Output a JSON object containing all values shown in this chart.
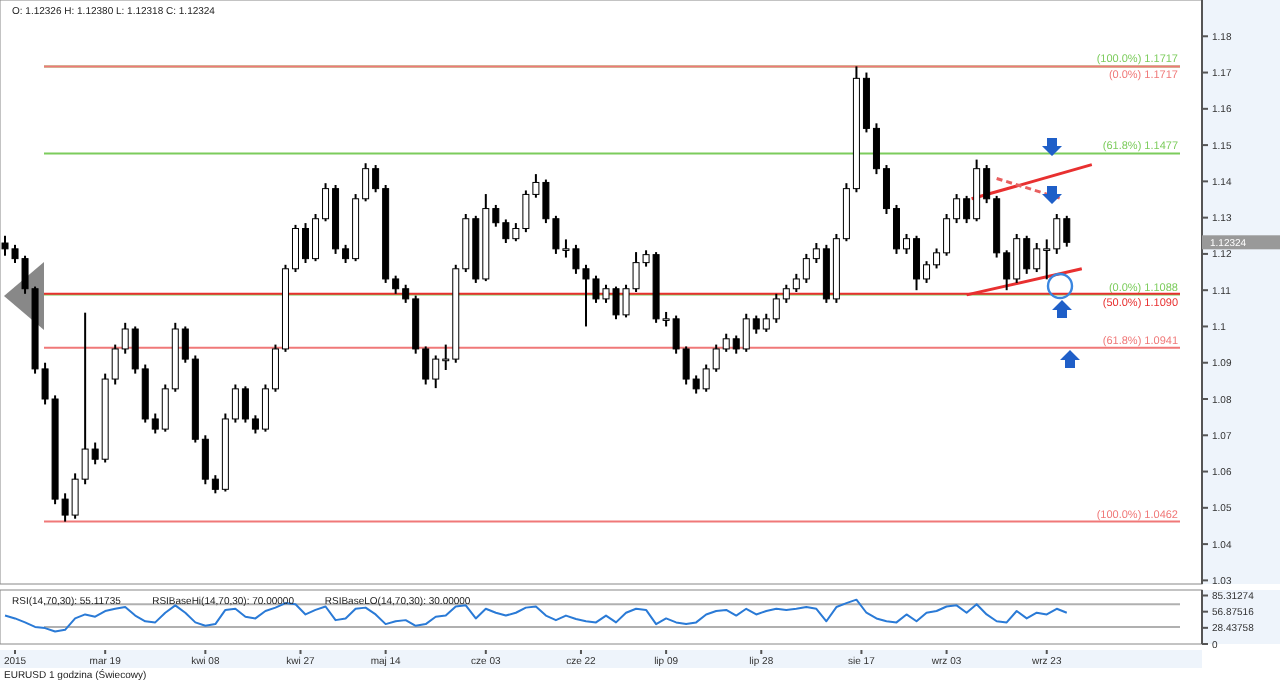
{
  "chart_data": [
    {
      "type": "candlestick",
      "title": "O: 1.12326 H: 1.12380 L: 1.12318 C: 1.12324",
      "tick_labels": "y",
      "x": [
        "2015-02-27",
        "2015-03-01",
        "2015-03-03",
        "2015-03-05",
        "2015-03-07",
        "2015-03-09",
        "2015-03-11",
        "2015-03-13",
        "2015-03-15",
        "2015-03-17",
        "2015-03-19",
        "2015-03-21",
        "2015-03-23",
        "2015-03-25",
        "2015-03-27",
        "2015-03-29",
        "2015-03-31",
        "2015-04-02",
        "2015-04-04",
        "2015-04-06",
        "2015-04-08",
        "2015-04-10",
        "2015-04-12",
        "2015-04-14",
        "2015-04-16",
        "2015-04-18",
        "2015-04-20",
        "2015-04-22",
        "2015-04-24",
        "2015-04-26",
        "2015-04-28",
        "2015-04-30",
        "2015-05-02",
        "2015-05-04",
        "2015-05-06",
        "2015-05-08",
        "2015-05-10",
        "2015-05-12",
        "2015-05-14",
        "2015-05-16",
        "2015-05-18",
        "2015-05-20",
        "2015-05-22",
        "2015-05-24",
        "2015-05-26",
        "2015-05-28",
        "2015-05-30",
        "2015-06-01",
        "2015-06-03",
        "2015-06-05",
        "2015-06-07",
        "2015-06-09",
        "2015-06-11",
        "2015-06-13",
        "2015-06-15",
        "2015-06-17",
        "2015-06-19",
        "2015-06-21",
        "2015-06-23",
        "2015-06-25",
        "2015-06-27",
        "2015-06-29",
        "2015-07-01",
        "2015-07-03",
        "2015-07-05",
        "2015-07-07",
        "2015-07-09",
        "2015-07-11",
        "2015-07-13",
        "2015-07-15",
        "2015-07-17",
        "2015-07-19",
        "2015-07-21",
        "2015-07-23",
        "2015-07-25",
        "2015-07-27",
        "2015-07-29",
        "2015-07-31",
        "2015-08-02",
        "2015-08-04",
        "2015-08-06",
        "2015-08-08",
        "2015-08-10",
        "2015-08-12",
        "2015-08-14",
        "2015-08-16",
        "2015-08-18",
        "2015-08-20",
        "2015-08-22",
        "2015-08-24",
        "2015-08-26",
        "2015-08-28",
        "2015-08-30",
        "2015-09-01",
        "2015-09-03",
        "2015-09-05",
        "2015-09-07",
        "2015-09-09",
        "2015-09-11",
        "2015-09-13",
        "2015-09-15",
        "2015-09-17",
        "2015-09-19",
        "2015-09-21",
        "2015-09-23",
        "2015-09-25",
        "2015-09-27"
      ],
      "ohlc": [
        [
          1.123,
          1.125,
          1.1195,
          1.1214
        ],
        [
          1.1214,
          1.1225,
          1.1175,
          1.1187
        ],
        [
          1.1187,
          1.1195,
          1.109,
          1.1104
        ],
        [
          1.1104,
          1.111,
          1.087,
          1.0883
        ],
        [
          1.0883,
          1.09,
          1.0785,
          1.08
        ],
        [
          1.08,
          1.081,
          1.051,
          1.0524
        ],
        [
          1.0524,
          1.054,
          1.0462,
          1.048
        ],
        [
          1.048,
          1.0595,
          1.047,
          1.0579
        ],
        [
          1.0579,
          1.1038,
          1.0565,
          1.0662
        ],
        [
          1.0662,
          1.068,
          1.062,
          1.0634
        ],
        [
          1.0634,
          1.087,
          1.0625,
          1.0855
        ],
        [
          1.0855,
          1.095,
          1.084,
          1.0938
        ],
        [
          1.0938,
          1.101,
          1.0925,
          1.0993
        ],
        [
          1.0993,
          1.1,
          1.087,
          1.0883
        ],
        [
          1.0883,
          1.0895,
          1.0735,
          1.0745
        ],
        [
          1.0745,
          1.076,
          1.0705,
          1.0717
        ],
        [
          1.0717,
          1.084,
          1.071,
          1.0828
        ],
        [
          1.0828,
          1.101,
          1.082,
          1.0993
        ],
        [
          1.0993,
          1.1,
          1.09,
          1.091
        ],
        [
          1.091,
          1.092,
          1.068,
          1.0689
        ],
        [
          1.0689,
          1.07,
          1.0565,
          1.0579
        ],
        [
          1.0579,
          1.059,
          1.054,
          1.0551
        ],
        [
          1.0551,
          1.076,
          1.0545,
          1.0745
        ],
        [
          1.0745,
          1.084,
          1.0735,
          1.0828
        ],
        [
          1.0828,
          1.0835,
          1.0735,
          1.0745
        ],
        [
          1.0745,
          1.0755,
          1.0705,
          1.0717
        ],
        [
          1.0717,
          1.084,
          1.071,
          1.0828
        ],
        [
          1.0828,
          1.095,
          1.082,
          1.0938
        ],
        [
          1.0938,
          1.117,
          1.093,
          1.1159
        ],
        [
          1.1159,
          1.128,
          1.115,
          1.127
        ],
        [
          1.127,
          1.1285,
          1.1175,
          1.1187
        ],
        [
          1.1187,
          1.131,
          1.118,
          1.1297
        ],
        [
          1.1297,
          1.1395,
          1.129,
          1.138
        ],
        [
          1.138,
          1.139,
          1.12,
          1.1214
        ],
        [
          1.1214,
          1.1225,
          1.1175,
          1.1187
        ],
        [
          1.1187,
          1.1365,
          1.118,
          1.1352
        ],
        [
          1.1352,
          1.145,
          1.1345,
          1.1435
        ],
        [
          1.1435,
          1.1445,
          1.137,
          1.138
        ],
        [
          1.138,
          1.139,
          1.112,
          1.1131
        ],
        [
          1.1131,
          1.114,
          1.109,
          1.1104
        ],
        [
          1.1104,
          1.1115,
          1.1065,
          1.1076
        ],
        [
          1.1076,
          1.1085,
          1.0925,
          1.0938
        ],
        [
          1.0938,
          1.0945,
          1.084,
          1.0855
        ],
        [
          1.0855,
          1.092,
          1.083,
          1.091
        ],
        [
          1.091,
          1.095,
          1.088,
          1.091
        ],
        [
          1.091,
          1.117,
          1.09,
          1.1159
        ],
        [
          1.1159,
          1.131,
          1.115,
          1.1297
        ],
        [
          1.1297,
          1.1305,
          1.112,
          1.1131
        ],
        [
          1.1131,
          1.1365,
          1.1125,
          1.1325
        ],
        [
          1.1325,
          1.1335,
          1.1275,
          1.1286
        ],
        [
          1.1286,
          1.1295,
          1.123,
          1.1242
        ],
        [
          1.1242,
          1.1285,
          1.1235,
          1.127
        ],
        [
          1.127,
          1.1375,
          1.126,
          1.1364
        ],
        [
          1.1364,
          1.142,
          1.1355,
          1.1397
        ],
        [
          1.1397,
          1.1405,
          1.1285,
          1.1297
        ],
        [
          1.1297,
          1.1305,
          1.12,
          1.1214
        ],
        [
          1.1214,
          1.124,
          1.119,
          1.1214
        ],
        [
          1.1214,
          1.1225,
          1.1145,
          1.1159
        ],
        [
          1.1159,
          1.117,
          1.1,
          1.1131
        ],
        [
          1.1131,
          1.114,
          1.1065,
          1.1076
        ],
        [
          1.1076,
          1.1115,
          1.1065,
          1.1104
        ],
        [
          1.1104,
          1.111,
          1.102,
          1.1032
        ],
        [
          1.1032,
          1.1115,
          1.1025,
          1.1104
        ],
        [
          1.1104,
          1.1205,
          1.1095,
          1.1176
        ],
        [
          1.1176,
          1.121,
          1.1165,
          1.1198
        ],
        [
          1.1198,
          1.1205,
          1.101,
          1.1021
        ],
        [
          1.1021,
          1.104,
          1.1,
          1.1021
        ],
        [
          1.1021,
          1.103,
          1.0925,
          1.0938
        ],
        [
          1.0938,
          1.0945,
          1.084,
          1.0855
        ],
        [
          1.0855,
          1.0865,
          1.0815,
          1.0828
        ],
        [
          1.0828,
          1.0895,
          1.082,
          1.0883
        ],
        [
          1.0883,
          1.095,
          1.0875,
          1.0938
        ],
        [
          1.0938,
          1.098,
          1.093,
          1.0966
        ],
        [
          1.0966,
          1.0975,
          1.0925,
          1.0938
        ],
        [
          1.0938,
          1.1035,
          1.093,
          1.1021
        ],
        [
          1.1021,
          1.103,
          1.098,
          1.0993
        ],
        [
          1.0993,
          1.1035,
          1.0985,
          1.1021
        ],
        [
          1.1021,
          1.109,
          1.101,
          1.1076
        ],
        [
          1.1076,
          1.1115,
          1.1065,
          1.1104
        ],
        [
          1.1104,
          1.1145,
          1.1095,
          1.1131
        ],
        [
          1.1131,
          1.12,
          1.112,
          1.1187
        ],
        [
          1.1187,
          1.123,
          1.1175,
          1.1214
        ],
        [
          1.1214,
          1.1225,
          1.1065,
          1.1076
        ],
        [
          1.1076,
          1.1255,
          1.1065,
          1.1242
        ],
        [
          1.1242,
          1.1395,
          1.1235,
          1.138
        ],
        [
          1.138,
          1.1717,
          1.137,
          1.1684
        ],
        [
          1.1684,
          1.17,
          1.1535,
          1.1546
        ],
        [
          1.1546,
          1.156,
          1.142,
          1.1435
        ],
        [
          1.1435,
          1.1445,
          1.131,
          1.1325
        ],
        [
          1.1325,
          1.1335,
          1.12,
          1.1214
        ],
        [
          1.1214,
          1.1255,
          1.12,
          1.1242
        ],
        [
          1.1242,
          1.125,
          1.11,
          1.1131
        ],
        [
          1.1131,
          1.118,
          1.112,
          1.117
        ],
        [
          1.117,
          1.1215,
          1.116,
          1.1203
        ],
        [
          1.1203,
          1.131,
          1.1195,
          1.1297
        ],
        [
          1.1297,
          1.1365,
          1.1285,
          1.1352
        ],
        [
          1.1352,
          1.136,
          1.1285,
          1.1297
        ],
        [
          1.1297,
          1.146,
          1.129,
          1.1435
        ],
        [
          1.1435,
          1.1445,
          1.134,
          1.1352
        ],
        [
          1.1352,
          1.136,
          1.119,
          1.1203
        ],
        [
          1.1203,
          1.121,
          1.11,
          1.1131
        ],
        [
          1.1131,
          1.1255,
          1.112,
          1.1242
        ],
        [
          1.1242,
          1.125,
          1.1145,
          1.1159
        ],
        [
          1.1159,
          1.123,
          1.115,
          1.1214
        ],
        [
          1.1214,
          1.124,
          1.113,
          1.1214
        ],
        [
          1.1214,
          1.131,
          1.12,
          1.1297
        ],
        [
          1.1297,
          1.1305,
          1.122,
          1.1232
        ]
      ],
      "series": [
        {
          "type": "line",
          "color": "#e83030",
          "x": [
            "2015-09-08",
            "2015-10-02"
          ],
          "values": [
            1.1352,
            1.1446
          ]
        },
        {
          "type": "line",
          "color": "#e83030",
          "x": [
            "2015-09-07",
            "2015-09-30"
          ],
          "values": [
            1.1087,
            1.1159
          ]
        },
        {
          "type": "line",
          "color": "#e86060",
          "line_style": "dashed",
          "x": [
            "2015-09-13",
            "2015-09-26"
          ],
          "values": [
            1.1408,
            1.1352
          ]
        }
      ],
      "xlim": [
        "2015-02-26",
        "2015-10-24"
      ],
      "ylim": [
        1.029,
        1.19
      ],
      "yticks": [
        1.03,
        1.04,
        1.05,
        1.06,
        1.07,
        1.08,
        1.09,
        1.1,
        1.11,
        1.12,
        1.13,
        1.14,
        1.15,
        1.16,
        1.17,
        1.18
      ],
      "ref_lines": [
        {
          "axis": "y",
          "value": 1.1717,
          "label": "(100.0%) 1.1717",
          "color": "#7ccc5c"
        },
        {
          "axis": "y",
          "value": 1.1717,
          "label": "(0.0%) 1.1717",
          "color": "#f07878"
        },
        {
          "axis": "y",
          "value": 1.1477,
          "label": "(61.8%) 1.1477",
          "color": "#7ccc5c"
        },
        {
          "axis": "y",
          "value": 1.1088,
          "label": "(0.0%) 1.1088",
          "color": "#7ccc5c"
        },
        {
          "axis": "y",
          "value": 1.109,
          "label": "(50.0%) 1.1090",
          "color": "#e83030"
        },
        {
          "axis": "y",
          "value": 1.0941,
          "label": "(61.8%) 1.0941",
          "color": "#f07878"
        },
        {
          "axis": "y",
          "value": 1.0462,
          "label": "(100.0%) 1.0462",
          "color": "#f07878"
        }
      ],
      "annotations": [
        "1.12324"
      ]
    },
    {
      "type": "line",
      "xlabel": "EURUSD 1 godzina (Świecowy)",
      "series": [
        {
          "color": "#2a7ad6",
          "values": [
            50,
            45,
            38,
            30,
            28,
            22,
            25,
            45,
            52,
            48,
            58,
            62,
            65,
            50,
            40,
            38,
            55,
            68,
            55,
            38,
            32,
            35,
            60,
            62,
            48,
            45,
            58,
            64,
            72,
            70,
            52,
            60,
            66,
            42,
            45,
            62,
            64,
            52,
            35,
            40,
            42,
            32,
            35,
            48,
            50,
            66,
            68,
            45,
            62,
            55,
            50,
            55,
            64,
            66,
            50,
            42,
            50,
            44,
            40,
            38,
            50,
            38,
            55,
            62,
            60,
            35,
            45,
            38,
            35,
            38,
            52,
            58,
            60,
            50,
            62,
            52,
            58,
            62,
            60,
            62,
            65,
            62,
            40,
            65,
            72,
            78,
            55,
            45,
            40,
            38,
            52,
            40,
            55,
            58,
            66,
            68,
            55,
            70,
            52,
            40,
            38,
            58,
            45,
            55,
            52,
            62,
            55
          ]
        }
      ],
      "x": [
        "2015-02-27",
        "2015-03-01",
        "2015-03-03",
        "2015-03-05",
        "2015-03-07",
        "2015-03-09",
        "2015-03-11",
        "2015-03-13",
        "2015-03-15",
        "2015-03-17",
        "2015-03-19",
        "2015-03-21",
        "2015-03-23",
        "2015-03-25",
        "2015-03-27",
        "2015-03-29",
        "2015-03-31",
        "2015-04-02",
        "2015-04-04",
        "2015-04-06",
        "2015-04-08",
        "2015-04-10",
        "2015-04-12",
        "2015-04-14",
        "2015-04-16",
        "2015-04-18",
        "2015-04-20",
        "2015-04-22",
        "2015-04-24",
        "2015-04-26",
        "2015-04-28",
        "2015-04-30",
        "2015-05-02",
        "2015-05-04",
        "2015-05-06",
        "2015-05-08",
        "2015-05-10",
        "2015-05-12",
        "2015-05-14",
        "2015-05-16",
        "2015-05-18",
        "2015-05-20",
        "2015-05-22",
        "2015-05-24",
        "2015-05-26",
        "2015-05-28",
        "2015-05-30",
        "2015-06-01",
        "2015-06-03",
        "2015-06-05",
        "2015-06-07",
        "2015-06-09",
        "2015-06-11",
        "2015-06-13",
        "2015-06-15",
        "2015-06-17",
        "2015-06-19",
        "2015-06-21",
        "2015-06-23",
        "2015-06-25",
        "2015-06-27",
        "2015-06-29",
        "2015-07-01",
        "2015-07-03",
        "2015-07-05",
        "2015-07-07",
        "2015-07-09",
        "2015-07-11",
        "2015-07-13",
        "2015-07-15",
        "2015-07-17",
        "2015-07-19",
        "2015-07-21",
        "2015-07-23",
        "2015-07-25",
        "2015-07-27",
        "2015-07-29",
        "2015-07-31",
        "2015-08-02",
        "2015-08-04",
        "2015-08-06",
        "2015-08-08",
        "2015-08-10",
        "2015-08-12",
        "2015-08-14",
        "2015-08-16",
        "2015-08-18",
        "2015-08-20",
        "2015-08-22",
        "2015-08-24",
        "2015-08-26",
        "2015-08-28",
        "2015-08-30",
        "2015-09-01",
        "2015-09-03",
        "2015-09-05",
        "2015-09-07",
        "2015-09-09",
        "2015-09-11",
        "2015-09-13",
        "2015-09-15",
        "2015-09-17",
        "2015-09-19",
        "2015-09-21",
        "2015-09-23",
        "2015-09-25",
        "2015-09-27"
      ],
      "xlim": [
        "2015-02-26",
        "2015-10-24"
      ],
      "ylim": [
        0,
        95
      ],
      "xticks": [
        {
          "value": "2015-03-01",
          "label": "2015"
        },
        {
          "value": "2015-03-19",
          "label": "mar 19"
        },
        {
          "value": "2015-04-08",
          "label": "kwi 08"
        },
        {
          "value": "2015-04-27",
          "label": "kwi 27"
        },
        {
          "value": "2015-05-14",
          "label": "maj 14"
        },
        {
          "value": "2015-06-03",
          "label": "cze 03"
        },
        {
          "value": "2015-06-22",
          "label": "cze 22"
        },
        {
          "value": "2015-07-09",
          "label": "lip 09"
        },
        {
          "value": "2015-07-28",
          "label": "lip 28"
        },
        {
          "value": "2015-08-17",
          "label": "sie 17"
        },
        {
          "value": "2015-09-03",
          "label": "wrz 03"
        },
        {
          "value": "2015-09-23",
          "label": "wrz 23"
        }
      ],
      "yticks": [
        0,
        28.43758,
        56.87516,
        85.31274
      ],
      "ref_lines": [
        {
          "axis": "y",
          "value": 70,
          "color": "#b0b0b0"
        },
        {
          "axis": "y",
          "value": 30,
          "color": "#b0b0b0"
        }
      ],
      "annotations": [
        "RSI(14,70,30): 55.11735",
        "RSIBaseHi(14,70,30): 70.00000",
        "RSIBaseLO(14,70,30): 30.00000"
      ]
    }
  ]
}
